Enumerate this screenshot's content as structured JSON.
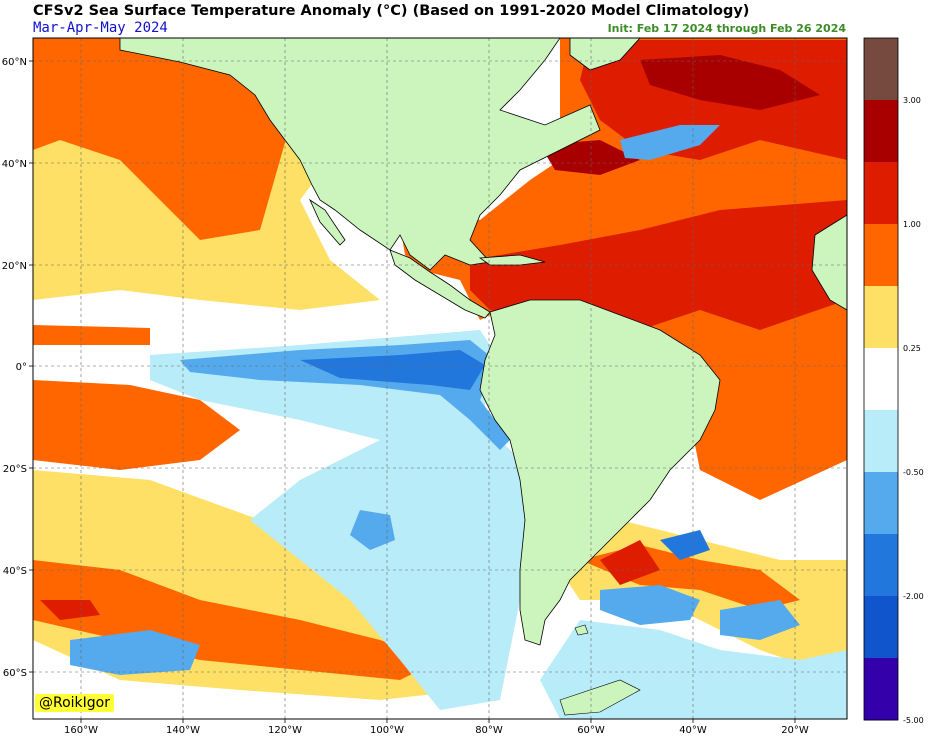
{
  "header": {
    "title": "CFSv2 Sea Surface Temperature Anomaly (°C) (Based on 1991-2020 Model Climatology)",
    "subtitle": "Mar-Apr-May 2024",
    "init": "Init: Feb 17 2024 through Feb 26 2024"
  },
  "watermark": "@RoikIgor",
  "axes": {
    "lat_labels": [
      "60°N",
      "40°N",
      "20°N",
      "0°",
      "20°S",
      "40°S",
      "60°S"
    ],
    "lon_labels": [
      "160°W",
      "140°W",
      "120°W",
      "100°W",
      "80°W",
      "60°W",
      "40°W",
      "20°W"
    ]
  },
  "colorbar": {
    "labels": [
      "3.00",
      "1.00",
      "0.25",
      "-0.50",
      "-2.00",
      "-5.00"
    ],
    "colors": [
      "#764a3e",
      "#a80000",
      "#dd1c00",
      "#ff6600",
      "#ffe066",
      "#ffffff",
      "#b8ecf8",
      "#55aaee",
      "#2277dd",
      "#1155cc",
      "#3300aa"
    ]
  },
  "colors": {
    "land": "#ccf5bd",
    "ocean_white": "#ffffff",
    "pale_yellow": "#ffe066",
    "orange": "#ff6600",
    "red": "#dd1c00",
    "dark_red": "#a80000",
    "light_blue": "#b8ecf8",
    "mid_blue": "#55aaee",
    "blue": "#2277dd"
  }
}
